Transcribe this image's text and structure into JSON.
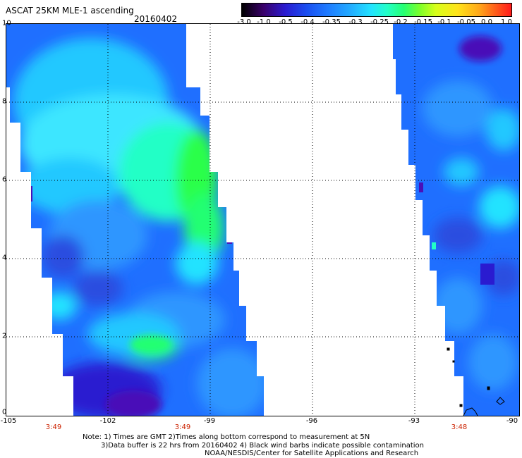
{
  "header": {
    "title": "ASCAT 25KM MLE-1 ascending",
    "date": "20160402"
  },
  "colorbar": {
    "ticks": [
      "-3.0",
      "-1.0",
      "-0.5",
      "-0.4",
      "-0.35",
      "-0.3",
      "-0.25",
      "-0.2",
      "-0.15",
      "-0.1",
      "-0.05",
      "0.0",
      "1.0"
    ]
  },
  "map": {
    "y_labels": [
      "10",
      "8",
      "6",
      "4",
      "2",
      "0"
    ],
    "x_labels": [
      "-105",
      "-102",
      "-99",
      "-96",
      "-93",
      "-90"
    ],
    "time_labels": [
      "3:49",
      "3:49",
      "3:48"
    ],
    "colors": {
      "deep": "#2a1bd0",
      "blue": "#1f6fff",
      "mid": "#2f96ff",
      "light": "#22c8ff",
      "cyan": "#3ee6ff",
      "teal": "#22ffc6",
      "green": "#2bff4a",
      "violet": "#4a10b8"
    }
  },
  "notes": {
    "line1": "Note: 1) Times are GMT 2)Times along bottom correspond to measurement at 5N",
    "line2": "3)Data buffer is 22 hrs from 20160402 4) Black wind barbs indicate possible contamination",
    "line3": "NOAA/NESDIS/Center for Satellite Applications and Research"
  }
}
